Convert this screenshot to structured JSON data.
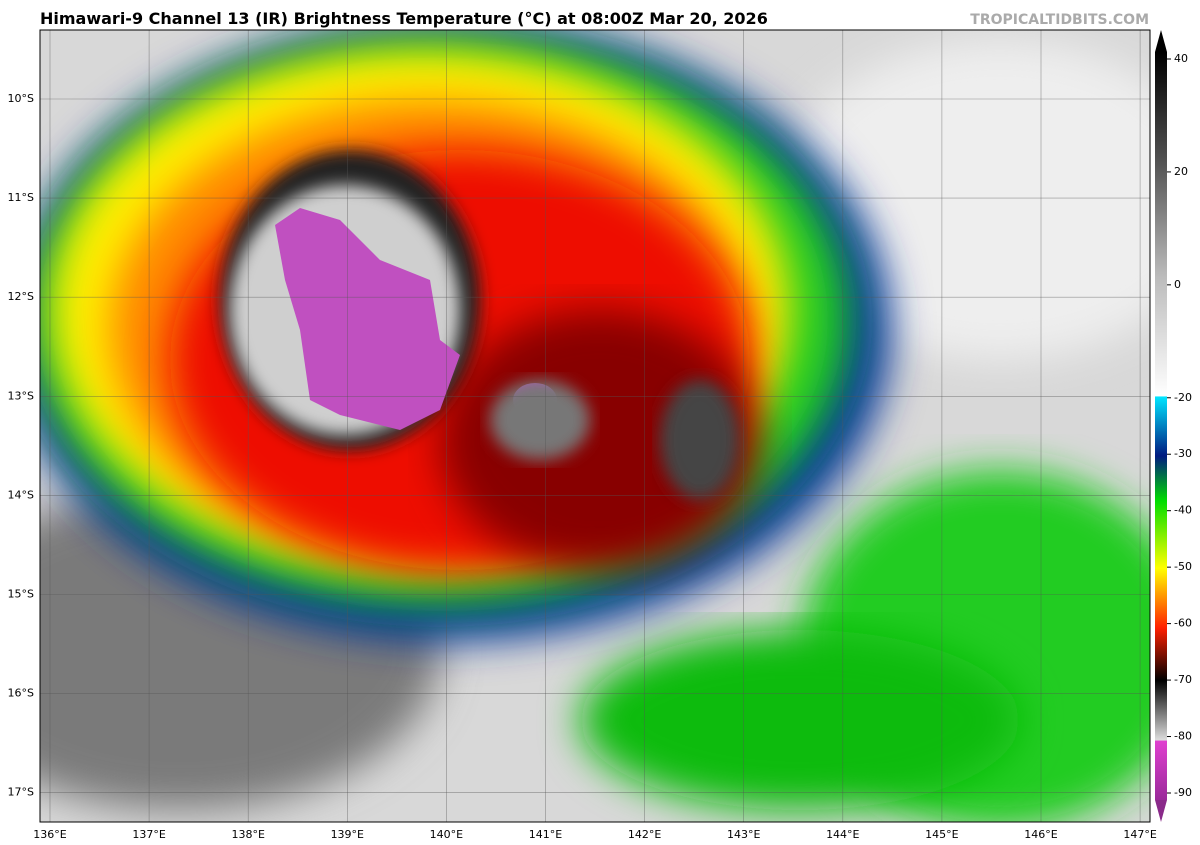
{
  "title": "Himawari-9 Channel 13 (IR) Brightness Temperature (°C) at 08:00Z Mar 20, 2026",
  "credit": "TROPICALTIDBITS.COM",
  "map": {
    "lat_labels": [
      "10°S",
      "11°S",
      "12°S",
      "13°S",
      "14°S",
      "15°S",
      "16°S",
      "17°S"
    ],
    "lon_labels": [
      "136°E",
      "137°E",
      "138°E",
      "139°E",
      "140°E",
      "141°E",
      "142°E",
      "143°E",
      "144°E",
      "145°E",
      "146°E",
      "147°E"
    ],
    "grid": true
  },
  "colorbar": {
    "lim": [
      -90,
      40
    ],
    "ticks": [
      40,
      20,
      0,
      -20,
      -30,
      -40,
      -50,
      -60,
      -70,
      -80,
      -90
    ]
  }
}
